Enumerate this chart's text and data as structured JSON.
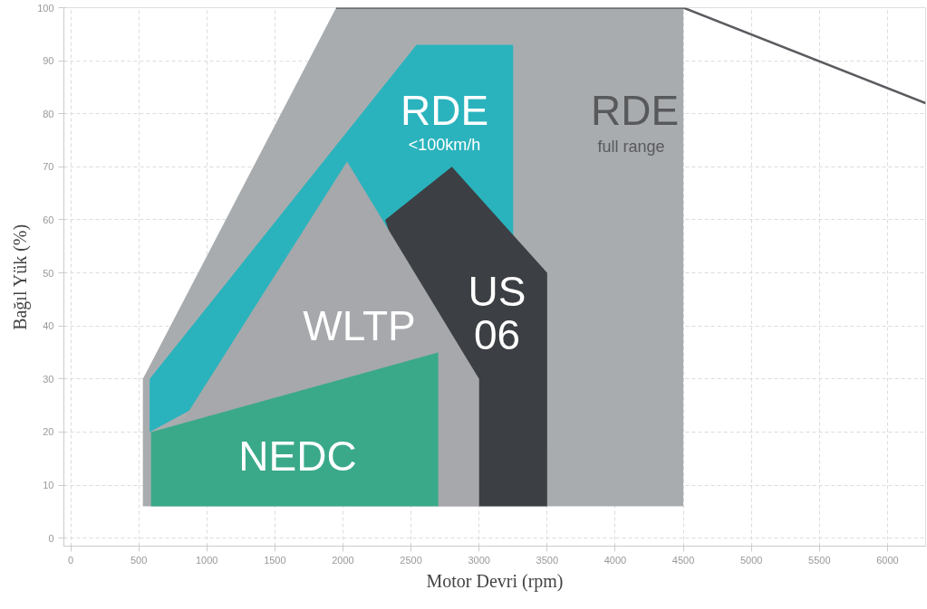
{
  "chart_data": {
    "type": "area",
    "xlabel": "Motor Devri (rpm)",
    "ylabel": "Bağıl Yük (%)",
    "xlim": [
      -50,
      6280
    ],
    "ylim": [
      -1.5,
      100
    ],
    "xticks": [
      0,
      500,
      1000,
      1500,
      2000,
      2500,
      3000,
      3500,
      4000,
      4500,
      5000,
      5500,
      6000
    ],
    "yticks": [
      0,
      10,
      20,
      30,
      40,
      50,
      60,
      70,
      80,
      90,
      100
    ],
    "grid": true,
    "series": [
      {
        "color": "#a9acaf",
        "x": [
          530,
          530,
          1950,
          4500,
          4500
        ],
        "values": [
          6,
          30,
          100,
          100,
          6
        ]
      },
      {
        "type": "line",
        "color": "#5a5c5f",
        "x": [
          1950,
          4500,
          6280
        ],
        "values": [
          100,
          100,
          82
        ]
      },
      {
        "color": "#2ab3bd",
        "x": [
          580,
          580,
          2540,
          3250,
          3250
        ],
        "values": [
          20,
          30,
          93,
          93,
          57
        ]
      },
      {
        "color": "#3c3f43",
        "x": [
          2310,
          2800,
          3500,
          3500,
          3000
        ],
        "values": [
          60,
          70,
          50,
          6,
          6
        ]
      },
      {
        "color": "#a6a8ab",
        "x": [
          820,
          2030,
          3000,
          3000,
          2700
        ],
        "values": [
          22,
          71,
          30,
          6,
          6
        ]
      },
      {
        "color": "#3aa98a",
        "x": [
          590,
          590,
          2700,
          2700
        ],
        "values": [
          6,
          20,
          35,
          6
        ]
      }
    ],
    "annotations": [
      "RDE",
      "<100km/h",
      "RDE",
      "full range",
      "WLTP",
      "US",
      "06",
      "NEDC"
    ]
  }
}
